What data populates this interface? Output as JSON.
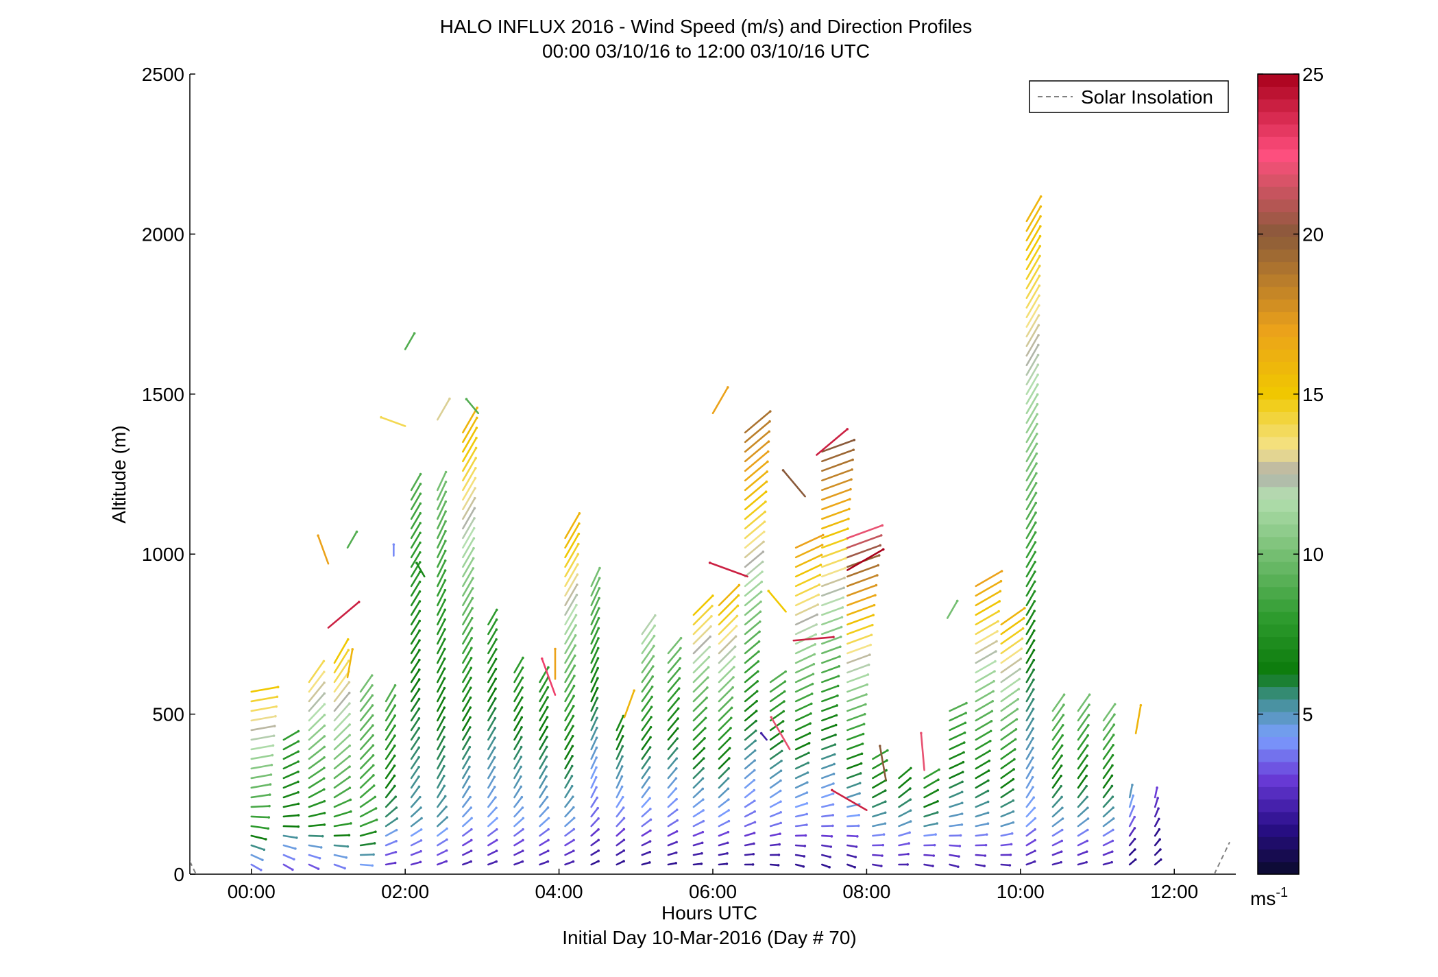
{
  "chart_data": {
    "type": "wind-barb-profile",
    "title_line1": "HALO INFLUX 2016 - Wind Speed (m/s) and Direction Profiles",
    "title_line2": "00:00 03/10/16 to 12:00 03/10/16  UTC",
    "xlabel": "Hours UTC",
    "xlabel2": "Initial Day 10-Mar-2016 (Day # 70)",
    "ylabel": "Altitude (m)",
    "xlim": [
      -0.8,
      12.8
    ],
    "ylim": [
      0,
      2500
    ],
    "x_ticks": [
      {
        "value": 0,
        "label": "00:00"
      },
      {
        "value": 2,
        "label": "02:00"
      },
      {
        "value": 4,
        "label": "04:00"
      },
      {
        "value": 6,
        "label": "06:00"
      },
      {
        "value": 8,
        "label": "08:00"
      },
      {
        "value": 10,
        "label": "10:00"
      },
      {
        "value": 12,
        "label": "12:00"
      }
    ],
    "y_ticks": [
      {
        "value": 0,
        "label": "0"
      },
      {
        "value": 500,
        "label": "500"
      },
      {
        "value": 1000,
        "label": "1000"
      },
      {
        "value": 1500,
        "label": "1500"
      },
      {
        "value": 2000,
        "label": "2000"
      },
      {
        "value": 2500,
        "label": "2500"
      }
    ],
    "legend": {
      "label": "Solar Insolation",
      "placement": "top-right",
      "line_color": "#808080"
    },
    "colorbar": {
      "unit_base": "ms",
      "unit_exp": "-1",
      "range": [
        0,
        25
      ],
      "ticks": [
        {
          "value": 5,
          "label": "5"
        },
        {
          "value": 10,
          "label": "10"
        },
        {
          "value": 15,
          "label": "15"
        },
        {
          "value": 20,
          "label": "20"
        },
        {
          "value": 25,
          "label": "25"
        }
      ],
      "stops": [
        {
          "v": 0,
          "c": "#0a0a2a"
        },
        {
          "v": 1.5,
          "c": "#2a0e8a"
        },
        {
          "v": 3,
          "c": "#6a3bd8"
        },
        {
          "v": 4.3,
          "c": "#7aa0ff"
        },
        {
          "v": 5.5,
          "c": "#3f8f8c"
        },
        {
          "v": 6.3,
          "c": "#0b7a0b"
        },
        {
          "v": 8,
          "c": "#2e9b2e"
        },
        {
          "v": 11.8,
          "c": "#b5dfb0"
        },
        {
          "v": 12.5,
          "c": "#b0b0a8"
        },
        {
          "v": 13.3,
          "c": "#f5e38a"
        },
        {
          "v": 15,
          "c": "#f0c800"
        },
        {
          "v": 17,
          "c": "#eba21a"
        },
        {
          "v": 20,
          "c": "#8a5a3a"
        },
        {
          "v": 22.5,
          "c": "#ff4f7f"
        },
        {
          "v": 25,
          "c": "#a8001a"
        }
      ]
    },
    "wind_profiles": [
      {
        "t": 0.0,
        "zmin": 30,
        "zmax": 580,
        "dz": 30,
        "speed_low": 7,
        "speed_high": 15,
        "dir": 10,
        "top_turn": 0
      },
      {
        "t": 0.42,
        "zmin": 30,
        "zmax": 420,
        "dz": 30,
        "speed_low": 6,
        "speed_high": 8,
        "dir": 10,
        "top_turn": 20
      },
      {
        "t": 0.75,
        "zmin": 30,
        "zmax": 620,
        "dz": 30,
        "speed_low": 6,
        "speed_high": 14,
        "dir": 15,
        "top_turn": 40
      },
      {
        "t": 1.08,
        "zmin": 30,
        "zmax": 660,
        "dz": 30,
        "speed_low": 7,
        "speed_high": 15,
        "dir": 20,
        "top_turn": 40
      },
      {
        "t": 1.42,
        "zmin": 30,
        "zmax": 580,
        "dz": 30,
        "speed_low": 8,
        "speed_high": 10,
        "dir": 35,
        "top_turn": 20
      },
      {
        "t": 1.75,
        "zmin": 30,
        "zmax": 560,
        "dz": 30,
        "speed_low": 5,
        "speed_high": 9,
        "dir": 50,
        "top_turn": 10
      },
      {
        "t": 2.08,
        "zmin": 30,
        "zmax": 1200,
        "dz": 30,
        "speed_low": 5,
        "speed_high": 9,
        "dir": 55,
        "top_turn": 5
      },
      {
        "t": 2.42,
        "zmin": 30,
        "zmax": 1200,
        "dz": 30,
        "speed_low": 5,
        "speed_high": 10,
        "dir": 60,
        "top_turn": 5
      },
      {
        "t": 2.75,
        "zmin": 30,
        "zmax": 1400,
        "dz": 30,
        "speed_low": 4,
        "speed_high": 16,
        "dir": 60,
        "top_turn": 0
      },
      {
        "t": 3.08,
        "zmin": 30,
        "zmax": 790,
        "dz": 30,
        "speed_low": 4,
        "speed_high": 8,
        "dir": 60,
        "top_turn": 0
      },
      {
        "t": 3.42,
        "zmin": 30,
        "zmax": 640,
        "dz": 30,
        "speed_low": 4,
        "speed_high": 8,
        "dir": 60,
        "top_turn": 0
      },
      {
        "t": 3.75,
        "zmin": 30,
        "zmax": 600,
        "dz": 30,
        "speed_low": 4,
        "speed_high": 8,
        "dir": 60,
        "top_turn": 0
      },
      {
        "t": 4.08,
        "zmin": 30,
        "zmax": 1070,
        "dz": 30,
        "speed_low": 4,
        "speed_high": 16,
        "dir": 60,
        "top_turn": 0
      },
      {
        "t": 4.42,
        "zmin": 30,
        "zmax": 900,
        "dz": 30,
        "speed_low": 3,
        "speed_high": 10,
        "dir": 65,
        "top_turn": 0
      },
      {
        "t": 4.75,
        "zmin": 30,
        "zmax": 460,
        "dz": 30,
        "speed_low": 3,
        "speed_high": 7,
        "dir": 65,
        "top_turn": 0
      },
      {
        "t": 5.08,
        "zmin": 30,
        "zmax": 760,
        "dz": 30,
        "speed_low": 3,
        "speed_high": 12,
        "dir": 55,
        "top_turn": 0
      },
      {
        "t": 5.42,
        "zmin": 30,
        "zmax": 700,
        "dz": 30,
        "speed_low": 3,
        "speed_high": 10,
        "dir": 50,
        "top_turn": 0
      },
      {
        "t": 5.75,
        "zmin": 30,
        "zmax": 820,
        "dz": 30,
        "speed_low": 3,
        "speed_high": 15,
        "dir": 45,
        "top_turn": 0
      },
      {
        "t": 6.08,
        "zmin": 30,
        "zmax": 860,
        "dz": 30,
        "speed_low": 3,
        "speed_high": 16,
        "dir": 45,
        "top_turn": 0
      },
      {
        "t": 6.42,
        "zmin": 30,
        "zmax": 1400,
        "dz": 30,
        "speed_low": 3,
        "speed_high": 19,
        "dir": 40,
        "top_turn": 0
      },
      {
        "t": 6.75,
        "zmin": 30,
        "zmax": 620,
        "dz": 30,
        "speed_low": 3,
        "speed_high": 9,
        "dir": 35,
        "top_turn": 0
      },
      {
        "t": 7.08,
        "zmin": 30,
        "zmax": 1020,
        "dz": 30,
        "speed_low": 3,
        "speed_high": 17,
        "dir": 25,
        "top_turn": 0
      },
      {
        "t": 7.42,
        "zmin": 30,
        "zmax": 1320,
        "dz": 30,
        "speed_low": 3,
        "speed_high": 20,
        "dir": 20,
        "top_turn": 0
      },
      {
        "t": 7.75,
        "zmin": 30,
        "zmax": 1060,
        "dz": 30,
        "speed_low": 3,
        "speed_high": 22,
        "dir": 20,
        "top_turn": 0
      },
      {
        "t": 8.08,
        "zmin": 30,
        "zmax": 360,
        "dz": 30,
        "speed_low": 4,
        "speed_high": 8,
        "dir": 30,
        "top_turn": 0
      },
      {
        "t": 8.42,
        "zmin": 30,
        "zmax": 300,
        "dz": 30,
        "speed_low": 4,
        "speed_high": 7,
        "dir": 40,
        "top_turn": 0
      },
      {
        "t": 8.75,
        "zmin": 30,
        "zmax": 320,
        "dz": 30,
        "speed_low": 4,
        "speed_high": 8,
        "dir": 30,
        "top_turn": 0
      },
      {
        "t": 9.08,
        "zmin": 30,
        "zmax": 520,
        "dz": 30,
        "speed_low": 4,
        "speed_high": 9,
        "dir": 25,
        "top_turn": 0
      },
      {
        "t": 9.42,
        "zmin": 30,
        "zmax": 920,
        "dz": 30,
        "speed_low": 4,
        "speed_high": 17,
        "dir": 30,
        "top_turn": 0
      },
      {
        "t": 9.75,
        "zmin": 30,
        "zmax": 780,
        "dz": 30,
        "speed_low": 4,
        "speed_high": 16,
        "dir": 35,
        "top_turn": 0
      },
      {
        "t": 10.08,
        "zmin": 30,
        "zmax": 2060,
        "dz": 30,
        "speed_low": 4,
        "speed_high": 16,
        "dir": 60,
        "top_turn": 0
      },
      {
        "t": 10.42,
        "zmin": 30,
        "zmax": 520,
        "dz": 30,
        "speed_low": 4,
        "speed_high": 10,
        "dir": 55,
        "top_turn": 0
      },
      {
        "t": 10.75,
        "zmin": 30,
        "zmax": 520,
        "dz": 30,
        "speed_low": 4,
        "speed_high": 10,
        "dir": 55,
        "top_turn": 0
      },
      {
        "t": 11.08,
        "zmin": 30,
        "zmax": 480,
        "dz": 30,
        "speed_low": 4,
        "speed_high": 10,
        "dir": 55,
        "top_turn": 0
      },
      {
        "t": 11.42,
        "zmin": 30,
        "zmax": 240,
        "dz": 30,
        "speed_low": 2,
        "speed_high": 5,
        "dir": 80,
        "top_turn": 0
      },
      {
        "t": 11.75,
        "zmin": 30,
        "zmax": 240,
        "dz": 30,
        "speed_low": 1,
        "speed_high": 3,
        "dir": 80,
        "top_turn": 0
      }
    ],
    "isolated_barbs": [
      {
        "t": 1.0,
        "z": 970,
        "speed": 17,
        "dir": 110
      },
      {
        "t": 1.0,
        "z": 770,
        "speed": 24,
        "dir": 40
      },
      {
        "t": 1.25,
        "z": 1020,
        "speed": 9,
        "dir": 60
      },
      {
        "t": 1.25,
        "z": 615,
        "speed": 16,
        "dir": 80
      },
      {
        "t": 1.85,
        "z": 995,
        "speed": 4,
        "dir": 90
      },
      {
        "t": 2.0,
        "z": 1640,
        "speed": 9,
        "dir": 60
      },
      {
        "t": 2.25,
        "z": 930,
        "speed": 7,
        "dir": 120
      },
      {
        "t": 2.0,
        "z": 1400,
        "speed": 14,
        "dir": 160
      },
      {
        "t": 2.42,
        "z": 1420,
        "speed": 13,
        "dir": 60
      },
      {
        "t": 2.95,
        "z": 1440,
        "speed": 9,
        "dir": 130
      },
      {
        "t": 3.95,
        "z": 560,
        "speed": 23,
        "dir": 110
      },
      {
        "t": 3.95,
        "z": 610,
        "speed": 17,
        "dir": 90
      },
      {
        "t": 4.85,
        "z": 490,
        "speed": 16,
        "dir": 70
      },
      {
        "t": 6.0,
        "z": 1440,
        "speed": 17,
        "dir": 60
      },
      {
        "t": 6.45,
        "z": 930,
        "speed": 24,
        "dir": 160
      },
      {
        "t": 6.7,
        "z": 420,
        "speed": 2,
        "dir": 130
      },
      {
        "t": 7.0,
        "z": 390,
        "speed": 22,
        "dir": 120
      },
      {
        "t": 6.95,
        "z": 820,
        "speed": 15,
        "dir": 130
      },
      {
        "t": 7.05,
        "z": 730,
        "speed": 24,
        "dir": 5
      },
      {
        "t": 7.35,
        "z": 1310,
        "speed": 24,
        "dir": 40
      },
      {
        "t": 7.2,
        "z": 1180,
        "speed": 20,
        "dir": 130
      },
      {
        "t": 7.75,
        "z": 950,
        "speed": 25,
        "dir": 30
      },
      {
        "t": 8.0,
        "z": 200,
        "speed": 24,
        "dir": 150
      },
      {
        "t": 8.25,
        "z": 295,
        "speed": 20,
        "dir": 100
      },
      {
        "t": 8.75,
        "z": 325,
        "speed": 22,
        "dir": 95
      },
      {
        "t": 9.05,
        "z": 800,
        "speed": 10,
        "dir": 60
      },
      {
        "t": 11.5,
        "z": 440,
        "speed": 16,
        "dir": 80
      }
    ]
  }
}
